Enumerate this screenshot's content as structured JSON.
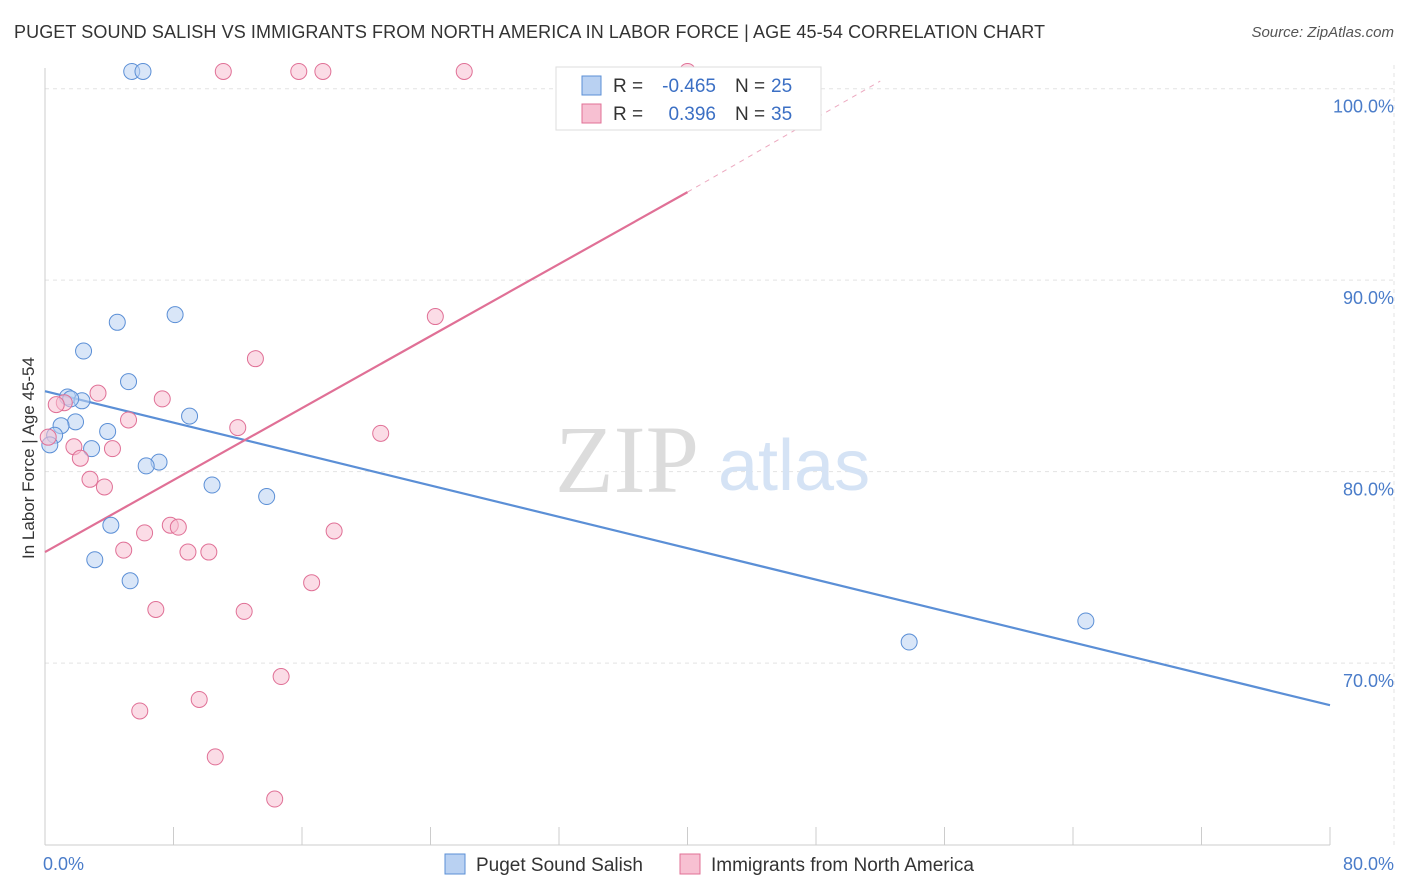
{
  "title": "PUGET SOUND SALISH VS IMMIGRANTS FROM NORTH AMERICA IN LABOR FORCE | AGE 45-54 CORRELATION CHART",
  "source": "Source: ZipAtlas.com",
  "watermark": {
    "zip": "ZIP",
    "atlas": "atlas"
  },
  "legend": {
    "r_label": "R =",
    "n_label": "N =",
    "series": [
      {
        "r": "-0.465",
        "n": "25"
      },
      {
        "r": "0.396",
        "n": "35"
      }
    ]
  },
  "chart_data": {
    "type": "scatter",
    "title": "PUGET SOUND SALISH VS IMMIGRANTS FROM NORTH AMERICA IN LABOR FORCE | AGE 45-54 CORRELATION CHART",
    "xlabel": "",
    "ylabel": "In Labor Force | Age 45-54",
    "xlim": [
      0,
      80
    ],
    "ylim": [
      60.5,
      101.5
    ],
    "x_tick_labels": [
      "0.0%",
      "80.0%"
    ],
    "y_ticks": [
      100,
      90,
      80,
      70
    ],
    "y_tick_labels": [
      "100.0%",
      "90.0%",
      "80.0%",
      "70.0%"
    ],
    "grid": true,
    "series": [
      {
        "name": "Puget Sound Salish",
        "color": "#5b8fd6",
        "fill": "#b9d1f2",
        "trend": {
          "x": [
            0,
            80
          ],
          "y": [
            84.2,
            67.8
          ],
          "dashed_from": null
        },
        "points": [
          {
            "x": 5.4,
            "y": 100.9
          },
          {
            "x": 6.1,
            "y": 100.9
          },
          {
            "x": 8.1,
            "y": 88.2
          },
          {
            "x": 4.5,
            "y": 87.8
          },
          {
            "x": 2.4,
            "y": 86.3
          },
          {
            "x": 5.2,
            "y": 84.7
          },
          {
            "x": 1.4,
            "y": 83.9
          },
          {
            "x": 2.3,
            "y": 83.7
          },
          {
            "x": 9.0,
            "y": 82.9
          },
          {
            "x": 1.9,
            "y": 82.6
          },
          {
            "x": 1.0,
            "y": 82.4
          },
          {
            "x": 3.9,
            "y": 82.1
          },
          {
            "x": 0.6,
            "y": 81.9
          },
          {
            "x": 0.3,
            "y": 81.4
          },
          {
            "x": 2.9,
            "y": 81.2
          },
          {
            "x": 7.1,
            "y": 80.5
          },
          {
            "x": 6.3,
            "y": 80.3
          },
          {
            "x": 10.4,
            "y": 79.3
          },
          {
            "x": 13.8,
            "y": 78.7
          },
          {
            "x": 4.1,
            "y": 77.2
          },
          {
            "x": 3.1,
            "y": 75.4
          },
          {
            "x": 5.3,
            "y": 74.3
          },
          {
            "x": 64.8,
            "y": 72.2
          },
          {
            "x": 53.8,
            "y": 71.1
          },
          {
            "x": 1.6,
            "y": 83.8
          }
        ]
      },
      {
        "name": "Immigrants from North America",
        "color": "#e07096",
        "fill": "#f7c0d2",
        "trend": {
          "x": [
            0,
            40
          ],
          "y": [
            75.8,
            94.6
          ],
          "dashed_to": [
            52,
            100.4
          ]
        },
        "points": [
          {
            "x": 11.1,
            "y": 100.9
          },
          {
            "x": 15.8,
            "y": 100.9
          },
          {
            "x": 17.3,
            "y": 100.9
          },
          {
            "x": 26.1,
            "y": 100.9
          },
          {
            "x": 40.0,
            "y": 100.9
          },
          {
            "x": 24.3,
            "y": 88.1
          },
          {
            "x": 13.1,
            "y": 85.9
          },
          {
            "x": 3.3,
            "y": 84.1
          },
          {
            "x": 7.3,
            "y": 83.8
          },
          {
            "x": 1.2,
            "y": 83.6
          },
          {
            "x": 0.7,
            "y": 83.5
          },
          {
            "x": 5.2,
            "y": 82.7
          },
          {
            "x": 12.0,
            "y": 82.3
          },
          {
            "x": 20.9,
            "y": 82.0
          },
          {
            "x": 1.8,
            "y": 81.3
          },
          {
            "x": 4.2,
            "y": 81.2
          },
          {
            "x": 0.2,
            "y": 81.8
          },
          {
            "x": 2.2,
            "y": 80.7
          },
          {
            "x": 2.8,
            "y": 79.6
          },
          {
            "x": 3.7,
            "y": 79.2
          },
          {
            "x": 7.8,
            "y": 77.2
          },
          {
            "x": 8.3,
            "y": 77.1
          },
          {
            "x": 18.0,
            "y": 76.9
          },
          {
            "x": 6.2,
            "y": 76.8
          },
          {
            "x": 4.9,
            "y": 75.9
          },
          {
            "x": 8.9,
            "y": 75.8
          },
          {
            "x": 10.2,
            "y": 75.8
          },
          {
            "x": 16.6,
            "y": 74.2
          },
          {
            "x": 6.9,
            "y": 72.8
          },
          {
            "x": 12.4,
            "y": 72.7
          },
          {
            "x": 14.7,
            "y": 69.3
          },
          {
            "x": 9.6,
            "y": 68.1
          },
          {
            "x": 5.9,
            "y": 67.5
          },
          {
            "x": 10.6,
            "y": 65.1
          },
          {
            "x": 14.3,
            "y": 62.9
          }
        ]
      }
    ]
  },
  "bottom_legend": [
    "Puget Sound Salish",
    "Immigrants from North America"
  ]
}
